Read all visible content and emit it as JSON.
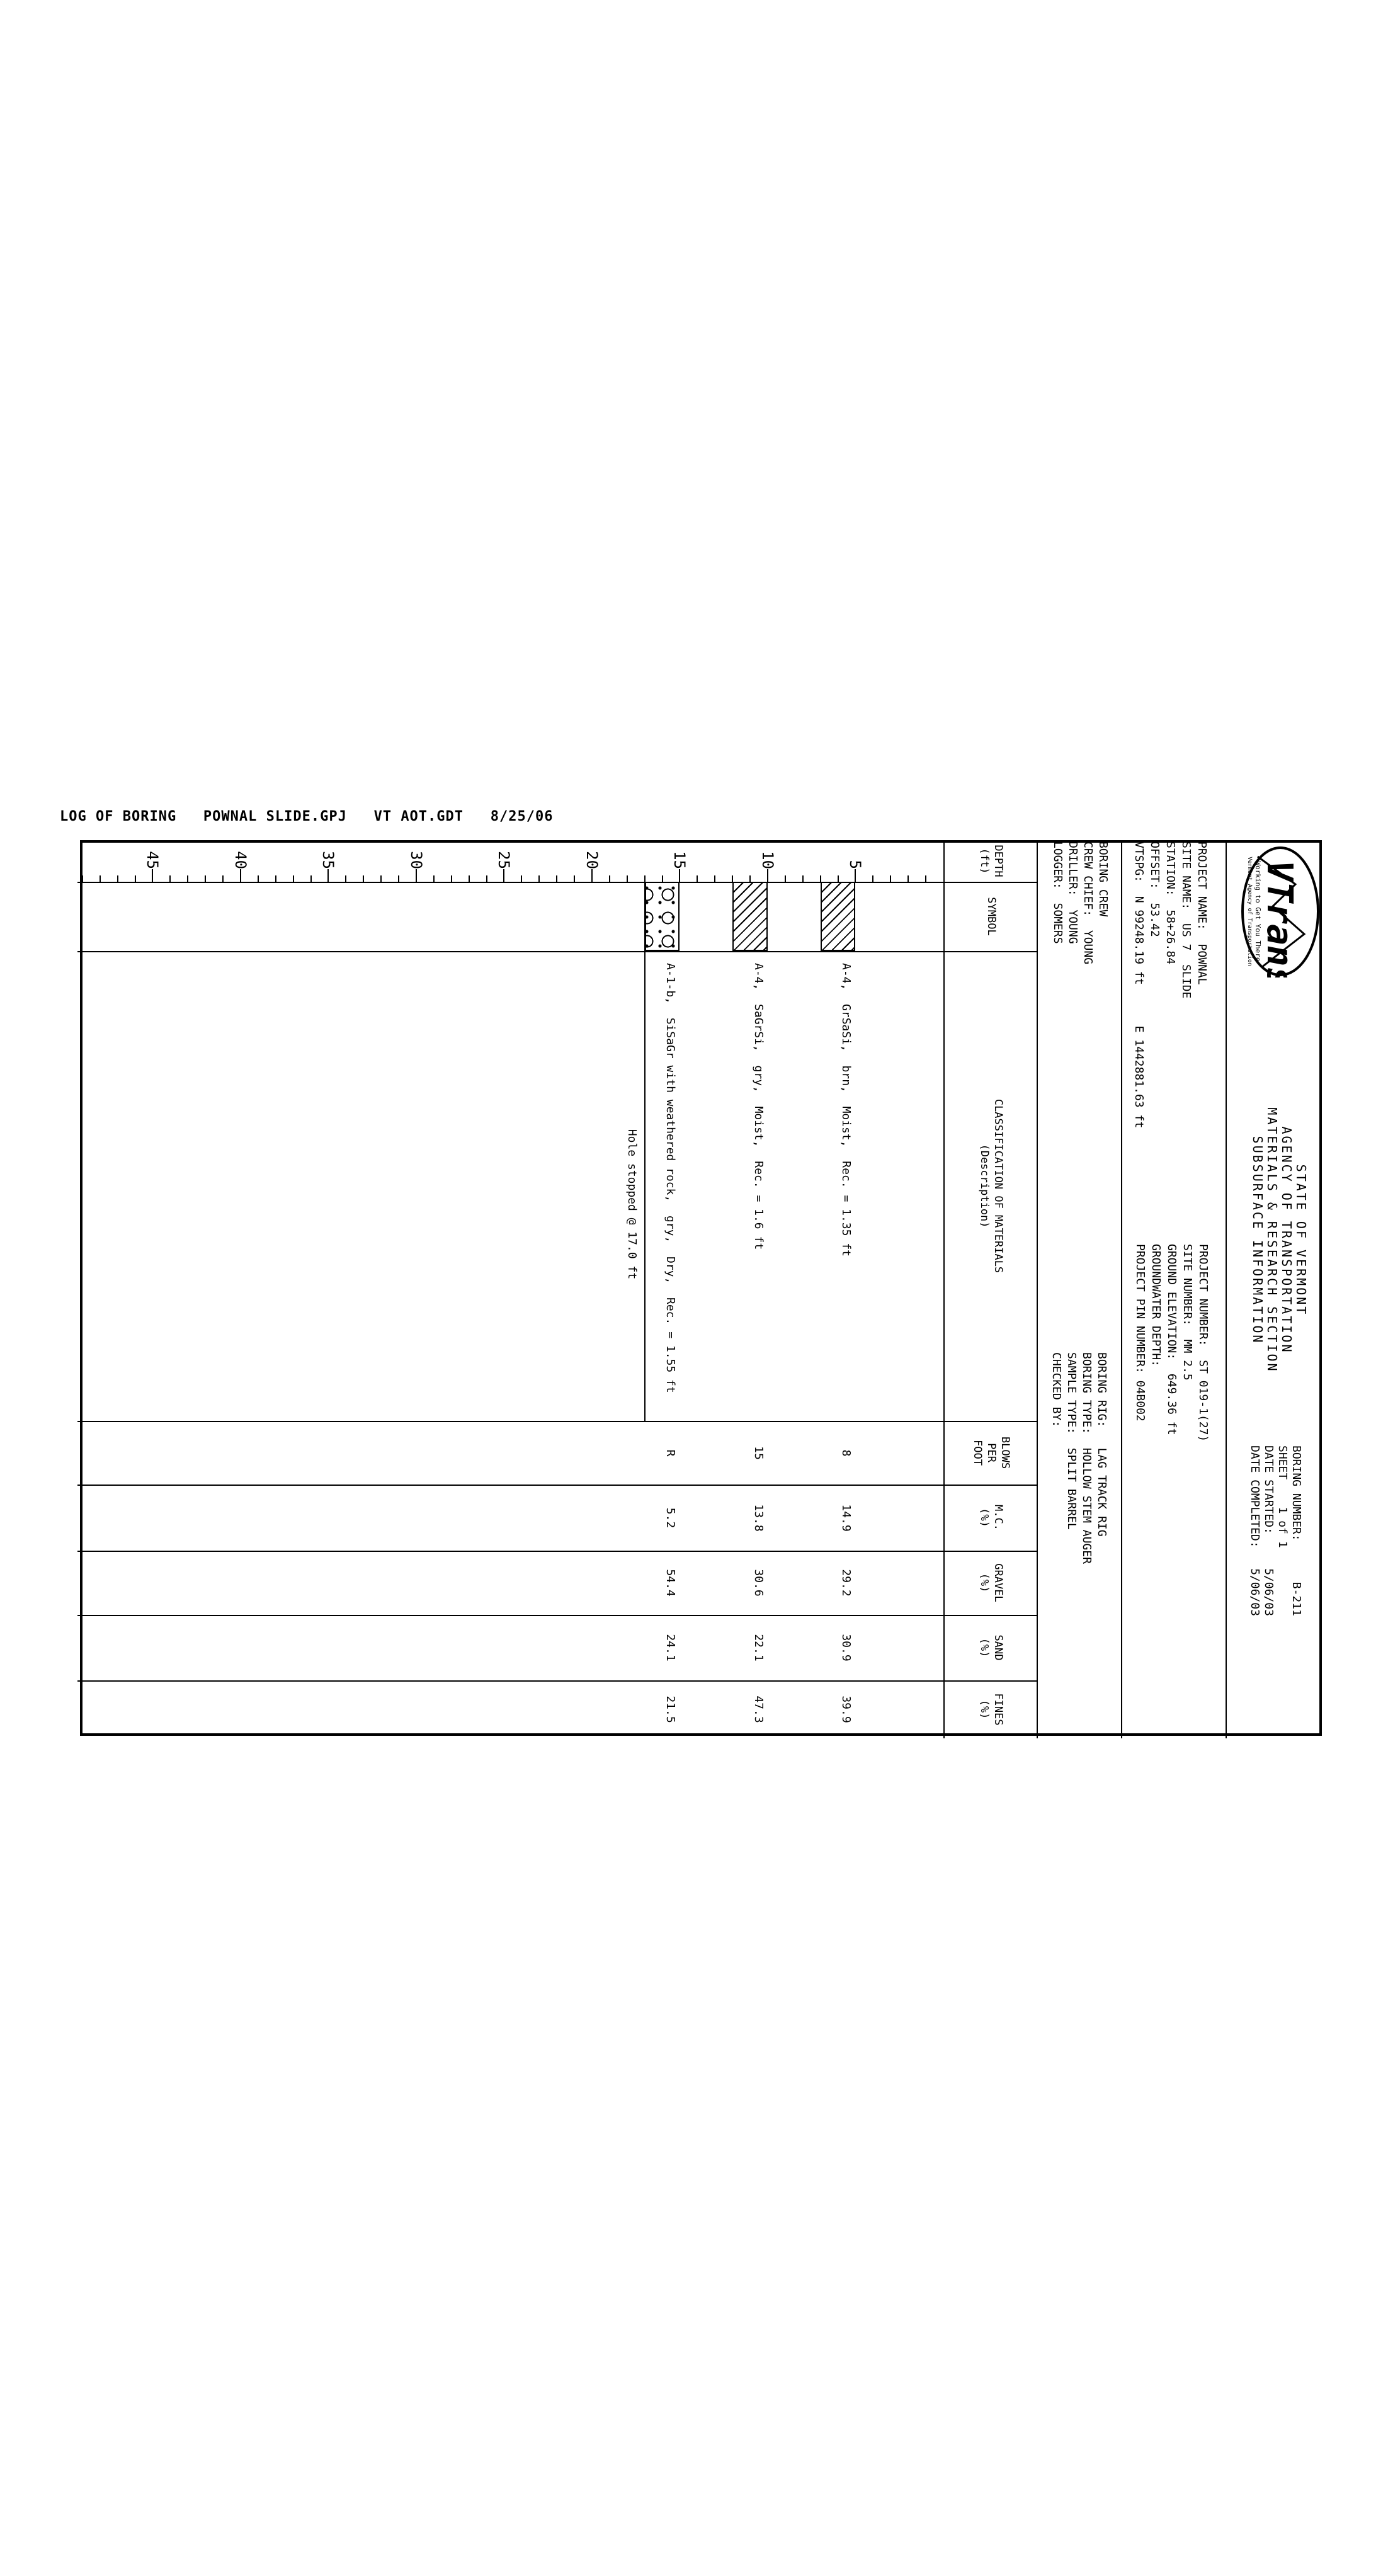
{
  "file_line": "LOG OF BORING   POWNAL SLIDE.GPJ   VT AOT.GDT   8/25/06",
  "logo": {
    "name": "VTrans",
    "tagline": "Working to Get You There",
    "subline": "Vermont Agency of Transportation"
  },
  "title": {
    "agency_lines": [
      "STATE OF VERMONT",
      "AGENCY OF TRANSPORTATION",
      "MATERIALS & RESEARCH SECTION",
      "SUBSURFACE INFORMATION"
    ],
    "boring_block": [
      "BORING NUMBER:      B-211",
      "SHEET    1 of 1",
      "DATE STARTED:     5/06/03",
      "DATE COMPLETED:   5/06/03"
    ]
  },
  "info": {
    "project_left": [
      "PROJECT NAME:  POWNAL",
      "SITE NAME:  US 7  SLIDE",
      "STATION:  58+26.84",
      "OFFSET:  53.42",
      "VTSPG:  N 99248.19 ft      E 1442881.63 ft"
    ],
    "project_right": [
      "PROJECT NUMBER:  ST 019-1(27)",
      "SITE NUMBER:  MM 2.5",
      "GROUND ELEVATION:  649.36 ft",
      "GROUNDWATER DEPTH:",
      "PROJECT PIN NUMBER: 04B002"
    ],
    "crew": [
      "BORING CREW",
      "CREW CHIEF:  YOUNG",
      "DRILLER:  YOUNG",
      "LOGGER:  SOMERS"
    ],
    "rig": [
      "BORING RIG:   LAG TRACK RIG",
      "BORING TYPE:  HOLLOW STEM AUGER",
      "SAMPLE TYPE:  SPLIT BARREL",
      "CHECKED BY:"
    ]
  },
  "table": {
    "columns": [
      {
        "id": "depth",
        "lines": [
          "DEPTH",
          "(ft)"
        ]
      },
      {
        "id": "symbol",
        "lines": [
          "SYMBOL"
        ]
      },
      {
        "id": "classification",
        "lines": [
          "CLASSIFICATION OF MATERIALS",
          "(Description)"
        ]
      },
      {
        "id": "blows",
        "lines": [
          "BLOWS",
          "PER",
          "FOOT"
        ]
      },
      {
        "id": "mc",
        "lines": [
          "M.C.",
          "(%)"
        ]
      },
      {
        "id": "gravel",
        "lines": [
          "GRAVEL",
          "(%)"
        ]
      },
      {
        "id": "sand",
        "lines": [
          "SAND",
          "(%)"
        ]
      },
      {
        "id": "fines",
        "lines": [
          "FINES",
          "(%)"
        ]
      }
    ]
  },
  "log": {
    "depth_unit": "ft",
    "depth_labels": [
      5,
      10,
      15,
      20,
      25,
      30,
      35,
      40,
      45
    ],
    "samples": [
      {
        "top_ft": 5.0,
        "bottom_ft": 7.0,
        "center_ft": 5.55,
        "pattern": "silt",
        "description": "A-4,  GrSaSi,  brn,  Moist,  Rec. = 1.35 ft",
        "blows": "8",
        "mc": "14.9",
        "gravel": "29.2",
        "sand": "30.9",
        "fines": "39.9"
      },
      {
        "top_ft": 10.0,
        "bottom_ft": 12.0,
        "center_ft": 10.55,
        "pattern": "silt",
        "description": "A-4,  SaGrSi,  gry,  Moist,  Rec. = 1.6 ft",
        "blows": "15",
        "mc": "13.8",
        "gravel": "30.6",
        "sand": "22.1",
        "fines": "47.3"
      },
      {
        "top_ft": 15.0,
        "bottom_ft": 17.0,
        "center_ft": 15.55,
        "pattern": "rock",
        "description": "A-1-b,  SiSaGr with weathered rock,  gry,  Dry,  Rec. = 1.55 ft",
        "blows": "R",
        "mc": "5.2",
        "gravel": "54.4",
        "sand": "24.1",
        "fines": "21.5"
      }
    ],
    "hole_stop": {
      "depth_ft": 17.0,
      "note": "Hole stopped @ 17.0 ft"
    }
  }
}
